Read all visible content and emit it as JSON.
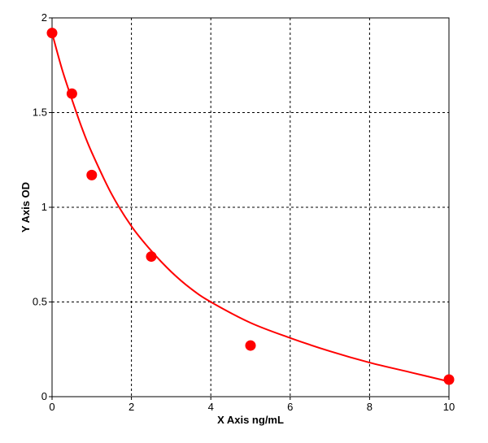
{
  "chart_data": {
    "type": "scatter",
    "title": "",
    "xlabel": "X Axis ng/mL",
    "ylabel": "Y Axis OD",
    "xlim": [
      0,
      10
    ],
    "ylim": [
      0,
      2
    ],
    "x_ticks": [
      {
        "value": 0,
        "label": "0"
      },
      {
        "value": 2,
        "label": "2"
      },
      {
        "value": 4,
        "label": "4"
      },
      {
        "value": 6,
        "label": "6"
      },
      {
        "value": 8,
        "label": "8"
      },
      {
        "value": 10,
        "label": "10"
      }
    ],
    "y_ticks": [
      {
        "value": 0,
        "label": "0"
      },
      {
        "value": 0.5,
        "label": "0.5"
      },
      {
        "value": 1,
        "label": "1"
      },
      {
        "value": 1.5,
        "label": "1.5"
      },
      {
        "value": 2,
        "label": "2"
      }
    ],
    "grid": true,
    "grid_style": "dashed",
    "points": {
      "x": [
        0,
        0.5,
        1,
        2.5,
        5,
        10
      ],
      "y": [
        1.92,
        1.6,
        1.17,
        0.74,
        0.27,
        0.09
      ]
    },
    "fit_curve": {
      "type": "smooth-fit",
      "x": [
        0,
        0.25,
        0.5,
        0.75,
        1,
        1.5,
        2,
        2.5,
        3,
        3.5,
        4,
        5,
        6,
        7,
        8,
        9,
        10
      ],
      "y": [
        1.92,
        1.73,
        1.57,
        1.42,
        1.29,
        1.07,
        0.9,
        0.77,
        0.66,
        0.57,
        0.5,
        0.39,
        0.31,
        0.24,
        0.18,
        0.13,
        0.08
      ]
    },
    "colors": {
      "series": "#ff0000",
      "grid": "#000000",
      "axes": "#000000"
    }
  }
}
